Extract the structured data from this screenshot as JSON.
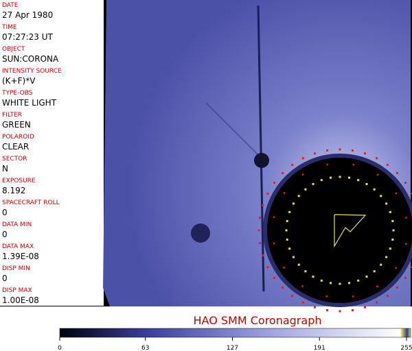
{
  "panel": {
    "fields": [
      {
        "label": "DATE",
        "value": "27 Apr 1980"
      },
      {
        "label": "TIME",
        "value": "07:27:23 UT"
      },
      {
        "label": "OBJECT",
        "value": "SUN:CORONA"
      },
      {
        "label": "INTENSITY SOURCE",
        "value": "(K+F)*V"
      },
      {
        "label": "TYPE-OBS",
        "value": "WHITE LIGHT"
      },
      {
        "label": "FILTER",
        "value": "GREEN"
      },
      {
        "label": "POLAROID",
        "value": "CLEAR"
      },
      {
        "label": "SECTOR",
        "value": "N"
      },
      {
        "label": "EXPOSURE",
        "value": "8.192"
      },
      {
        "label": "SPACECRAFT ROLL",
        "value": "0"
      },
      {
        "label": "DATA MIN",
        "value": "0"
      },
      {
        "label": "DATA MAX",
        "value": "1.39E-08"
      },
      {
        "label": "DISP MIN",
        "value": "0"
      },
      {
        "label": "DISP MAX",
        "value": "1.00E-08"
      }
    ]
  },
  "caption": "HAO  SMM Coronagraph",
  "colorbar": {
    "ticks": [
      0,
      63,
      127,
      191,
      255
    ]
  }
}
